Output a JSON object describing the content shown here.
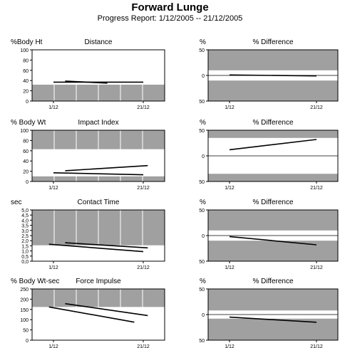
{
  "report": {
    "title": "Forward Lunge",
    "subtitle": "Progress Report: 1/12/2005 -- 21/12/2005"
  },
  "colors": {
    "band": "#a0a0a0",
    "line": "#000000",
    "plot_bg": "#ffffff",
    "grid": "#ffffff"
  },
  "chart_data": [
    {
      "type": "line",
      "panel": "left",
      "row": 0,
      "title": "Distance",
      "ylabel": "%Body Ht",
      "categories": [
        "1/12",
        "21/12"
      ],
      "ylim": [
        0,
        100
      ],
      "yticks": [
        "0",
        "20",
        "40",
        "60",
        "80",
        "100"
      ],
      "bands": [
        [
          0,
          32
        ],
        [
          100,
          100
        ]
      ],
      "series": [
        {
          "x": [
            0.0,
            1.0
          ],
          "y": [
            37,
            37
          ]
        },
        {
          "x": [
            0.13,
            0.6
          ],
          "y": [
            39,
            35
          ]
        }
      ]
    },
    {
      "type": "line",
      "panel": "right",
      "row": 0,
      "title": "% Difference",
      "ylabel": "%",
      "categories": [
        "1/12",
        "21/12"
      ],
      "ylim": [
        -50,
        50
      ],
      "yticks": [
        "50",
        "0",
        "50"
      ],
      "bands": [
        [
          -50,
          -10
        ],
        [
          10,
          50
        ]
      ],
      "series": [
        {
          "x": [
            0.0,
            1.0
          ],
          "y": [
            1,
            -1
          ]
        }
      ]
    },
    {
      "type": "line",
      "panel": "left",
      "row": 1,
      "title": "Impact Index",
      "ylabel": "% Body Wt",
      "categories": [
        "1/12",
        "21/12"
      ],
      "ylim": [
        0,
        100
      ],
      "yticks": [
        "0",
        "20",
        "40",
        "60",
        "80",
        "100"
      ],
      "bands": [
        [
          0,
          10
        ],
        [
          63,
          100
        ]
      ],
      "series": [
        {
          "x": [
            0.0,
            1.0
          ],
          "y": [
            17,
            13
          ]
        },
        {
          "x": [
            0.13,
            1.05
          ],
          "y": [
            21,
            31
          ]
        }
      ]
    },
    {
      "type": "line",
      "panel": "right",
      "row": 1,
      "title": "% Difference",
      "ylabel": "%",
      "categories": [
        "1/12",
        "21/12"
      ],
      "ylim": [
        -50,
        50
      ],
      "yticks": [
        "50",
        "0",
        "50"
      ],
      "bands": [
        [
          -50,
          -35
        ],
        [
          35,
          50
        ]
      ],
      "series": [
        {
          "x": [
            0.0,
            1.0
          ],
          "y": [
            12,
            32
          ]
        }
      ]
    },
    {
      "type": "line",
      "panel": "left",
      "row": 2,
      "title": "Contact Time",
      "ylabel": "sec",
      "categories": [
        "1/12",
        "21/12"
      ],
      "ylim": [
        0,
        5
      ],
      "yticks": [
        "0,0",
        "0,5",
        "1,0",
        "1,5",
        "2,0",
        "2,5",
        "3,0",
        "3,5",
        "4,0",
        "4,5",
        "5,0"
      ],
      "bands": [
        [
          0,
          0
        ],
        [
          1.55,
          5
        ]
      ],
      "series": [
        {
          "x": [
            -0.05,
            1.0
          ],
          "y": [
            1.65,
            0.93
          ]
        },
        {
          "x": [
            0.13,
            1.05
          ],
          "y": [
            1.8,
            1.3
          ]
        }
      ]
    },
    {
      "type": "line",
      "panel": "right",
      "row": 2,
      "title": "% Difference",
      "ylabel": "%",
      "categories": [
        "1/12",
        "21/12"
      ],
      "ylim": [
        -50,
        50
      ],
      "yticks": [
        "50",
        "0",
        "50"
      ],
      "bands": [
        [
          -50,
          -10
        ],
        [
          10,
          50
        ]
      ],
      "series": [
        {
          "x": [
            0.0,
            1.0
          ],
          "y": [
            -2,
            -18
          ]
        }
      ]
    },
    {
      "type": "line",
      "panel": "left",
      "row": 3,
      "title": "Force Impulse",
      "ylabel": "% Body Wt-sec",
      "categories": [
        "1/12",
        "21/12"
      ],
      "ylim": [
        0,
        250
      ],
      "yticks": [
        "0",
        "50",
        "100",
        "150",
        "200",
        "250"
      ],
      "bands": [
        [
          0,
          0
        ],
        [
          162,
          250
        ]
      ],
      "series": [
        {
          "x": [
            -0.05,
            0.9
          ],
          "y": [
            162,
            88
          ]
        },
        {
          "x": [
            0.13,
            1.05
          ],
          "y": [
            178,
            120
          ]
        }
      ]
    },
    {
      "type": "line",
      "panel": "right",
      "row": 3,
      "title": "% Difference",
      "ylabel": "%",
      "categories": [
        "1/12",
        "21/12"
      ],
      "ylim": [
        -50,
        50
      ],
      "yticks": [
        "50",
        "0",
        "50"
      ],
      "bands": [
        [
          -50,
          -8
        ],
        [
          8,
          50
        ]
      ],
      "series": [
        {
          "x": [
            0.0,
            1.0
          ],
          "y": [
            -5,
            -15
          ]
        }
      ]
    }
  ]
}
